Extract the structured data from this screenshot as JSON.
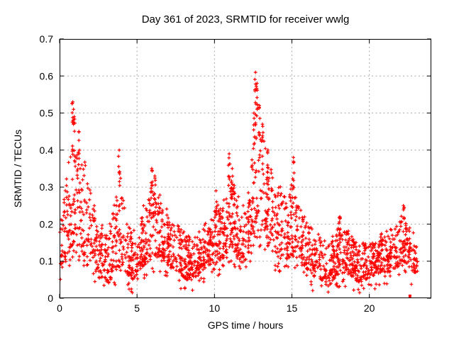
{
  "figure": {
    "title": "Day 361 of 2023, SRMTID for receiver wwlg",
    "xlabel": "GPS time / hours",
    "ylabel": "SRMTID / TECUs"
  },
  "colors": {
    "background": "#ffffff",
    "axis": "#000000",
    "grid": "#a8a8a8",
    "text": "#000000",
    "marker": "#ff0000"
  },
  "chart_data": {
    "type": "scatter",
    "title": "Day 361 of 2023, SRMTID for receiver wwlg",
    "xlabel": "GPS time / hours",
    "ylabel": "SRMTID / TECUs",
    "xlim": [
      0,
      24
    ],
    "ylim": [
      0,
      0.7
    ],
    "x_tick_values": [
      0,
      5,
      10,
      15,
      20
    ],
    "x_tick_labels": [
      "0",
      "5",
      "10",
      "15",
      "20"
    ],
    "y_tick_values": [
      0,
      0.1,
      0.2,
      0.3,
      0.4,
      0.5,
      0.6,
      0.7
    ],
    "y_tick_labels": [
      "0",
      "0.1",
      "0.2",
      "0.3",
      "0.4",
      "0.5",
      "0.6",
      "0.7"
    ],
    "grid": true,
    "legend": "none",
    "marker": "plus",
    "marker_color": "#ff0000",
    "series_name": "SRMTID",
    "t_start": 0,
    "t_end": 23.1,
    "seed": 1361,
    "envelope": [
      [
        0.0,
        0.09,
        0.22
      ],
      [
        0.4,
        0.1,
        0.3
      ],
      [
        0.7,
        0.14,
        0.42
      ],
      [
        1.0,
        0.14,
        0.44
      ],
      [
        1.4,
        0.12,
        0.36
      ],
      [
        1.8,
        0.11,
        0.3
      ],
      [
        2.1,
        0.09,
        0.26
      ],
      [
        2.45,
        0.05,
        0.16
      ],
      [
        2.8,
        0.06,
        0.19
      ],
      [
        3.1,
        0.04,
        0.16
      ],
      [
        3.5,
        0.07,
        0.24
      ],
      [
        3.9,
        0.09,
        0.3
      ],
      [
        4.2,
        0.07,
        0.22
      ],
      [
        4.7,
        0.05,
        0.17
      ],
      [
        5.2,
        0.08,
        0.2
      ],
      [
        5.7,
        0.1,
        0.28
      ],
      [
        6.1,
        0.11,
        0.3
      ],
      [
        6.6,
        0.1,
        0.24
      ],
      [
        7.1,
        0.08,
        0.21
      ],
      [
        7.6,
        0.07,
        0.18
      ],
      [
        8.1,
        0.05,
        0.16
      ],
      [
        8.6,
        0.05,
        0.15
      ],
      [
        9.1,
        0.07,
        0.17
      ],
      [
        9.6,
        0.09,
        0.2
      ],
      [
        10.1,
        0.09,
        0.23
      ],
      [
        10.6,
        0.11,
        0.25
      ],
      [
        11.0,
        0.14,
        0.32
      ],
      [
        11.3,
        0.12,
        0.28
      ],
      [
        11.7,
        0.09,
        0.22
      ],
      [
        12.1,
        0.11,
        0.26
      ],
      [
        12.5,
        0.15,
        0.4
      ],
      [
        12.8,
        0.17,
        0.45
      ],
      [
        13.1,
        0.15,
        0.4
      ],
      [
        13.5,
        0.13,
        0.35
      ],
      [
        14.0,
        0.11,
        0.3
      ],
      [
        14.5,
        0.1,
        0.26
      ],
      [
        15.0,
        0.11,
        0.3
      ],
      [
        15.3,
        0.1,
        0.26
      ],
      [
        15.8,
        0.08,
        0.2
      ],
      [
        16.3,
        0.06,
        0.17
      ],
      [
        16.9,
        0.05,
        0.15
      ],
      [
        17.3,
        0.03,
        0.13
      ],
      [
        17.8,
        0.06,
        0.18
      ],
      [
        18.3,
        0.07,
        0.19
      ],
      [
        18.8,
        0.06,
        0.16
      ],
      [
        19.3,
        0.04,
        0.13
      ],
      [
        19.7,
        0.05,
        0.14
      ],
      [
        20.2,
        0.06,
        0.15
      ],
      [
        20.7,
        0.07,
        0.16
      ],
      [
        21.2,
        0.07,
        0.17
      ],
      [
        21.7,
        0.08,
        0.18
      ],
      [
        22.1,
        0.1,
        0.23
      ],
      [
        22.45,
        0.09,
        0.19
      ],
      [
        22.8,
        0.07,
        0.16
      ],
      [
        23.1,
        0.07,
        0.14
      ]
    ],
    "spikes": [
      [
        0.85,
        0.53,
        10
      ],
      [
        0.95,
        0.49,
        7
      ],
      [
        1.25,
        0.45,
        6
      ],
      [
        3.85,
        0.4,
        8
      ],
      [
        5.95,
        0.35,
        8
      ],
      [
        6.15,
        0.33,
        6
      ],
      [
        10.1,
        0.29,
        6
      ],
      [
        10.95,
        0.39,
        9
      ],
      [
        11.15,
        0.35,
        6
      ],
      [
        12.55,
        0.5,
        8
      ],
      [
        12.65,
        0.61,
        12
      ],
      [
        12.75,
        0.58,
        9
      ],
      [
        12.9,
        0.52,
        7
      ],
      [
        13.1,
        0.47,
        6
      ],
      [
        13.45,
        0.4,
        6
      ],
      [
        15.1,
        0.38,
        9
      ],
      [
        18.1,
        0.22,
        5
      ],
      [
        22.2,
        0.25,
        6
      ]
    ],
    "outlier_point": {
      "hour": 22.62,
      "value": 0.006,
      "marker": "filled-square"
    },
    "summary": {
      "baseline_band": [
        0.05,
        0.22
      ],
      "max_value": 0.61,
      "max_at_hour": 12.7,
      "peaks": [
        {
          "hour": 0.9,
          "value": 0.53
        },
        {
          "hour": 3.9,
          "value": 0.4
        },
        {
          "hour": 6.0,
          "value": 0.35
        },
        {
          "hour": 11.0,
          "value": 0.39
        },
        {
          "hour": 12.7,
          "value": 0.61
        },
        {
          "hour": 15.1,
          "value": 0.38
        },
        {
          "hour": 22.2,
          "value": 0.25
        }
      ],
      "quiet_minimum": {
        "hour": 17.4,
        "value": 0.03
      }
    }
  }
}
